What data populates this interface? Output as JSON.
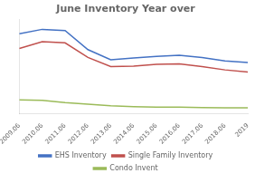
{
  "chart_data": {
    "type": "line",
    "title": "June Inventory Year over",
    "categories": [
      "2009.06",
      "2010.06",
      "2011.06",
      "2012.06",
      "2013.06",
      "2014.06",
      "2015.06",
      "2016.06",
      "2017.06",
      "2018.06",
      "2019"
    ],
    "series": [
      {
        "name": "EHS Inventory",
        "color": "#4472C4",
        "values": [
          3.55,
          3.75,
          3.7,
          2.85,
          2.4,
          2.48,
          2.55,
          2.6,
          2.5,
          2.35,
          2.28
        ]
      },
      {
        "name": "Single Family Inventory",
        "color": "#C0504D",
        "values": [
          2.9,
          3.2,
          3.15,
          2.5,
          2.1,
          2.12,
          2.2,
          2.22,
          2.1,
          1.95,
          1.85
        ]
      },
      {
        "name": "Condo Invent",
        "color": "#9BBB59",
        "values": [
          0.62,
          0.6,
          0.5,
          0.43,
          0.36,
          0.32,
          0.3,
          0.3,
          0.28,
          0.27,
          0.27
        ]
      }
    ],
    "ylim": [
      0,
      4.2
    ],
    "tick_labels": "x",
    "grid": false,
    "legend": "bottom"
  }
}
